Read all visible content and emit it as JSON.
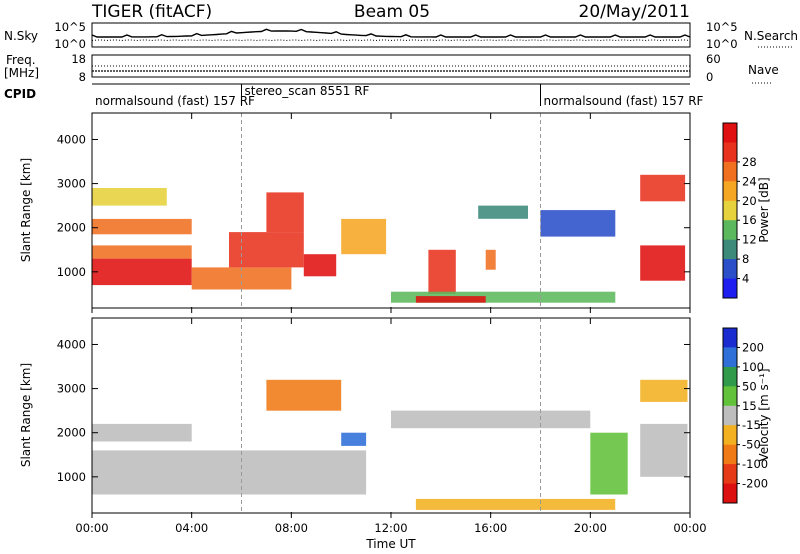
{
  "header": {
    "instrument": "TIGER (fitACF)",
    "beam": "Beam 05",
    "date": "20/May/2011"
  },
  "top_panel": {
    "left_label": "N.Sky",
    "right_label": "N.Search",
    "left_ticks": [
      "10^5",
      "10^0"
    ],
    "right_ticks": [
      "10^5",
      "10^0"
    ]
  },
  "freq_panel": {
    "left_label_1": "Freq.",
    "left_label_2": "[MHz]",
    "right_label": "Nave",
    "left_ticks": [
      "18",
      "8"
    ],
    "right_ticks": [
      "60",
      "0"
    ]
  },
  "cpid": {
    "label": "CPID",
    "segments": [
      {
        "start_hour": 0,
        "end_hour": 6,
        "text": "normalsound (fast) 157 RF"
      },
      {
        "start_hour": 6,
        "end_hour": 18,
        "text": "stereo_scan 8551 RF"
      },
      {
        "start_hour": 18,
        "end_hour": 24,
        "text": "normalsound (fast) 157 RF"
      }
    ]
  },
  "x_axis": {
    "label": "Time UT",
    "ticks": [
      "00:00",
      "04:00",
      "08:00",
      "12:00",
      "16:00",
      "20:00",
      "00:00"
    ]
  },
  "power_panel": {
    "ylabel": "Slant Range [km]",
    "yticks": [
      "1000",
      "2000",
      "3000",
      "4000"
    ],
    "colorbar_label": "Power [dB]",
    "colorbar_ticks": [
      "4",
      "8",
      "12",
      "16",
      "20",
      "24",
      "28"
    ],
    "colorbar_colors": [
      "#1e1ef0",
      "#2a4fc8",
      "#3b8a7a",
      "#5cb85c",
      "#e6d23c",
      "#f5a623",
      "#f07020",
      "#e8321e",
      "#e01010"
    ]
  },
  "velocity_panel": {
    "ylabel": "Slant Range [km]",
    "yticks": [
      "1000",
      "2000",
      "3000",
      "4000"
    ],
    "colorbar_label": "Velocity [m s⁻¹]",
    "colorbar_ticks": [
      "200",
      "100",
      "50",
      "15",
      "-15",
      "-50",
      "-100",
      "-200"
    ],
    "colorbar_colors": [
      "#1a2bd0",
      "#2f6fd8",
      "#2f9a4a",
      "#62c23a",
      "#bdbdbd",
      "#f3b020",
      "#f07a16",
      "#e63a16",
      "#dd1010"
    ]
  },
  "chart_data": {
    "type": "heatmap",
    "title": "TIGER (fitACF)   Beam 05   20/May/2011",
    "xlabel": "Time UT",
    "ylabel": "Slant Range [km]",
    "x_range_hours": [
      0,
      24
    ],
    "y_range_km": [
      180,
      4600
    ],
    "grid": false,
    "series": [
      {
        "name": "Power [dB]",
        "scale_range": [
          0,
          30
        ],
        "regions": [
          {
            "t0": 0.0,
            "t1": 4.0,
            "r0": 700,
            "r1": 1300,
            "value": 28
          },
          {
            "t0": 0.0,
            "t1": 4.0,
            "r0": 1300,
            "r1": 1600,
            "value": 22
          },
          {
            "t0": 0.0,
            "t1": 4.0,
            "r0": 1850,
            "r1": 2200,
            "value": 20
          },
          {
            "t0": 0.0,
            "t1": 3.0,
            "r0": 2500,
            "r1": 2900,
            "value": 14
          },
          {
            "t0": 4.0,
            "t1": 8.0,
            "r0": 600,
            "r1": 1100,
            "value": 22
          },
          {
            "t0": 5.5,
            "t1": 8.5,
            "r0": 1100,
            "r1": 1900,
            "value": 26
          },
          {
            "t0": 7.0,
            "t1": 8.5,
            "r0": 1900,
            "r1": 2800,
            "value": 24
          },
          {
            "t0": 8.5,
            "t1": 9.8,
            "r0": 900,
            "r1": 1400,
            "value": 27
          },
          {
            "t0": 10.0,
            "t1": 11.8,
            "r0": 1400,
            "r1": 2200,
            "value": 18
          },
          {
            "t0": 13.5,
            "t1": 14.6,
            "r0": 500,
            "r1": 1500,
            "value": 24
          },
          {
            "t0": 15.8,
            "t1": 16.2,
            "r0": 1050,
            "r1": 1500,
            "value": 22
          },
          {
            "t0": 12.0,
            "t1": 21.0,
            "r0": 300,
            "r1": 550,
            "value": 12
          },
          {
            "t0": 13.0,
            "t1": 15.8,
            "r0": 300,
            "r1": 450,
            "value": 28
          },
          {
            "t0": 15.5,
            "t1": 17.5,
            "r0": 2200,
            "r1": 2500,
            "value": 8
          },
          {
            "t0": 18.0,
            "t1": 21.0,
            "r0": 1800,
            "r1": 2400,
            "value": 6
          },
          {
            "t0": 22.0,
            "t1": 23.8,
            "r0": 800,
            "r1": 1600,
            "value": 27
          },
          {
            "t0": 22.0,
            "t1": 23.8,
            "r0": 2600,
            "r1": 3200,
            "value": 24
          }
        ]
      },
      {
        "name": "Velocity [m s⁻¹]",
        "scale_range": [
          -200,
          200
        ],
        "regions": [
          {
            "t0": 0.0,
            "t1": 11.0,
            "r0": 600,
            "r1": 1600,
            "value": 0
          },
          {
            "t0": 0.0,
            "t1": 4.0,
            "r0": 1800,
            "r1": 2200,
            "value": 0
          },
          {
            "t0": 7.0,
            "t1": 10.0,
            "r0": 2500,
            "r1": 3200,
            "value": -60
          },
          {
            "t0": 10.0,
            "t1": 11.0,
            "r0": 1700,
            "r1": 2000,
            "value": 100
          },
          {
            "t0": 12.0,
            "t1": 20.0,
            "r0": 2100,
            "r1": 2500,
            "value": 0
          },
          {
            "t0": 13.0,
            "t1": 21.0,
            "r0": 250,
            "r1": 500,
            "value": -40
          },
          {
            "t0": 20.0,
            "t1": 21.5,
            "r0": 600,
            "r1": 2000,
            "value": 30
          },
          {
            "t0": 22.0,
            "t1": 23.9,
            "r0": 1000,
            "r1": 2200,
            "value": 0
          },
          {
            "t0": 22.0,
            "t1": 23.9,
            "r0": 2700,
            "r1": 3200,
            "value": -30
          }
        ]
      }
    ]
  }
}
